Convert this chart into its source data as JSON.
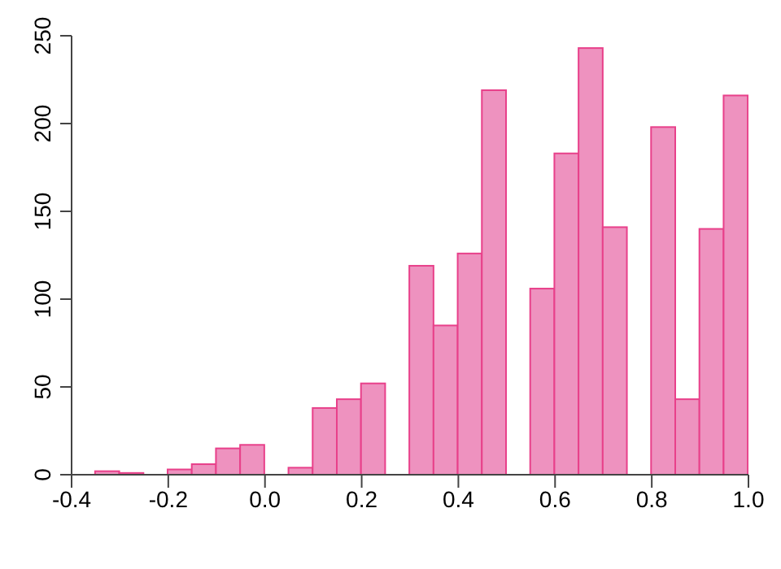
{
  "chart_data": {
    "type": "histogram",
    "bins": [
      -0.35,
      -0.3,
      -0.25,
      -0.2,
      -0.15,
      -0.1,
      -0.05,
      0,
      0.05,
      0.1,
      0.15,
      0.2,
      0.25,
      0.3,
      0.35,
      0.4,
      0.45,
      0.5,
      0.55,
      0.6,
      0.65,
      0.7,
      0.75,
      0.8,
      0.85,
      0.9,
      0.95,
      1.0
    ],
    "values": [
      2,
      1,
      0,
      3,
      6,
      15,
      17,
      0,
      4,
      38,
      43,
      52,
      0,
      119,
      85,
      126,
      219,
      0,
      106,
      183,
      243,
      141,
      0,
      198,
      43,
      140,
      216
    ],
    "color": "#ee92bf",
    "xlim": [
      -0.4,
      1.0
    ],
    "xticks": [
      -0.4,
      -0.2,
      {
        "value": 0,
        "label": "0.0"
      },
      0.2,
      0.4,
      0.6,
      0.8,
      {
        "value": 1,
        "label": "1.0"
      }
    ],
    "ylim": [
      0,
      250
    ],
    "yticks": [
      0,
      50,
      100,
      150,
      200,
      250
    ],
    "grid": false
  }
}
